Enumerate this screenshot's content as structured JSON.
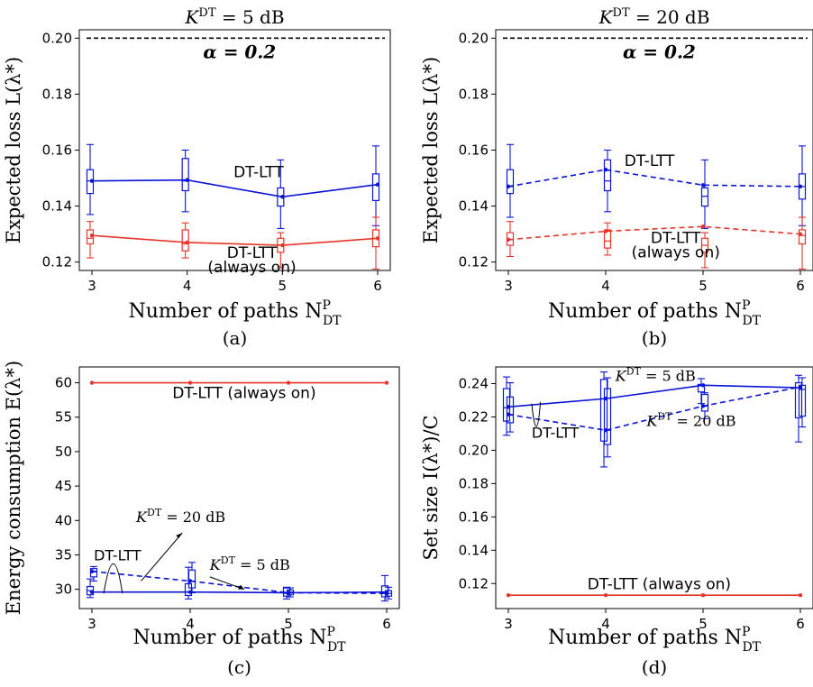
{
  "colors": {
    "blue": "#0a14d8",
    "red": "#e8352a",
    "black": "#000000"
  },
  "chart_data": [
    {
      "panel": "a",
      "caption": "(a)",
      "type": "line",
      "title": "K^DT = 5 dB",
      "title_main": "K",
      "title_sup": "DT",
      "title_rest": " = 5 dB",
      "xlabel": "Number of paths N^P_DT",
      "xlabel_main": "Number of paths N",
      "xlabel_sup": "P",
      "xlabel_sub": "DT",
      "ylabel": "Expected loss L(λ*)",
      "x": [
        3,
        4,
        5,
        6
      ],
      "xlim": [
        3,
        6
      ],
      "ylim": [
        0.117,
        0.203
      ],
      "yticks": [
        0.12,
        0.14,
        0.16,
        0.18,
        0.2
      ],
      "ytick_labels": [
        "0.12",
        "0.14",
        "0.16",
        "0.18",
        "0.20"
      ],
      "xticks": [
        3,
        4,
        5,
        6
      ],
      "xtick_labels": [
        "3",
        "4",
        "5",
        "6"
      ],
      "hline": {
        "y": 0.2,
        "label": "α = 0.2",
        "label_x": 4.55,
        "label_y": 0.1955
      },
      "series": [
        {
          "color": "#0a14d8",
          "dash": false,
          "values": [
            0.149,
            0.1493,
            0.1433,
            0.1477
          ],
          "boxes": [
            {
              "wlo": 0.137,
              "q1": 0.1445,
              "med": 0.149,
              "q3": 0.153,
              "whi": 0.162
            },
            {
              "wlo": 0.138,
              "q1": 0.1455,
              "med": 0.149,
              "q3": 0.157,
              "whi": 0.16
            },
            {
              "wlo": 0.132,
              "q1": 0.14,
              "med": 0.1435,
              "q3": 0.1465,
              "whi": 0.1565
            },
            {
              "wlo": 0.133,
              "q1": 0.142,
              "med": 0.1475,
              "q3": 0.1515,
              "whi": 0.1615
            }
          ],
          "label": "DT-LTT",
          "label_x": 4.75,
          "label_y": 0.1503
        },
        {
          "color": "#e8352a",
          "dash": false,
          "values": [
            0.1295,
            0.127,
            0.126,
            0.1285
          ],
          "boxes": [
            {
              "wlo": 0.1215,
              "q1": 0.1265,
              "med": 0.1285,
              "q3": 0.1315,
              "whi": 0.1345
            },
            {
              "wlo": 0.1215,
              "q1": 0.124,
              "med": 0.1265,
              "q3": 0.1315,
              "whi": 0.134
            },
            {
              "wlo": 0.118,
              "q1": 0.1235,
              "med": 0.126,
              "q3": 0.1285,
              "whi": 0.1305
            },
            {
              "wlo": 0.1175,
              "q1": 0.1255,
              "med": 0.1285,
              "q3": 0.1315,
              "whi": 0.136
            }
          ],
          "label": "DT-LTT",
          "label_x": 4.68,
          "label_y": 0.1215,
          "label2": "(always on)",
          "label2_x": 4.68,
          "label2_y": 0.1163
        }
      ]
    },
    {
      "panel": "b",
      "caption": "(b)",
      "type": "line",
      "title": "K^DT = 20 dB",
      "title_main": "K",
      "title_sup": "DT",
      "title_rest": " = 20 dB",
      "xlabel": "Number of paths N^P_DT",
      "xlabel_main": "Number of paths N",
      "xlabel_sup": "P",
      "xlabel_sub": "DT",
      "ylabel": "Expected loss L(λ*)",
      "x": [
        3,
        4,
        5,
        6
      ],
      "xlim": [
        3,
        6
      ],
      "ylim": [
        0.117,
        0.203
      ],
      "yticks": [
        0.12,
        0.14,
        0.16,
        0.18,
        0.2
      ],
      "ytick_labels": [
        "0.12",
        "0.14",
        "0.16",
        "0.18",
        "0.20"
      ],
      "xticks": [
        3,
        4,
        5,
        6
      ],
      "xtick_labels": [
        "3",
        "4",
        "5",
        "6"
      ],
      "hline": {
        "y": 0.2,
        "label": "α = 0.2",
        "label_x": 4.55,
        "label_y": 0.1955
      },
      "series": [
        {
          "color": "#0a14d8",
          "dash": true,
          "values": [
            0.147,
            0.153,
            0.1475,
            0.147
          ],
          "boxes": [
            {
              "wlo": 0.136,
              "q1": 0.1445,
              "med": 0.147,
              "q3": 0.153,
              "whi": 0.162
            },
            {
              "wlo": 0.138,
              "q1": 0.1455,
              "med": 0.149,
              "q3": 0.1565,
              "whi": 0.16
            },
            {
              "wlo": 0.132,
              "q1": 0.14,
              "med": 0.1435,
              "q3": 0.1465,
              "whi": 0.1565
            },
            {
              "wlo": 0.133,
              "q1": 0.1425,
              "med": 0.147,
              "q3": 0.1515,
              "whi": 0.1615
            }
          ],
          "label": "DT-LTT",
          "label_x": 4.45,
          "label_y": 0.1543
        },
        {
          "color": "#e8352a",
          "dash": true,
          "values": [
            0.128,
            0.131,
            0.1327,
            0.13
          ],
          "boxes": [
            {
              "wlo": 0.122,
              "q1": 0.126,
              "med": 0.128,
              "q3": 0.1305,
              "whi": 0.1345
            },
            {
              "wlo": 0.1225,
              "q1": 0.125,
              "med": 0.1275,
              "q3": 0.1315,
              "whi": 0.134
            },
            {
              "wlo": 0.118,
              "q1": 0.1235,
              "med": 0.126,
              "q3": 0.1285,
              "whi": 0.1305
            },
            {
              "wlo": 0.1175,
              "q1": 0.1265,
              "med": 0.1295,
              "q3": 0.1315,
              "whi": 0.136
            }
          ],
          "label": "DT-LTT",
          "label_x": 4.72,
          "label_y": 0.1268,
          "label2": "(always on)",
          "label2_x": 4.72,
          "label2_y": 0.1217
        }
      ]
    },
    {
      "panel": "c",
      "caption": "(c)",
      "type": "line",
      "title": "",
      "xlabel": "Number of paths N^P_DT",
      "xlabel_main": "Number of paths N",
      "xlabel_sup": "P",
      "xlabel_sub": "DT",
      "ylabel": "Energy consumption E(λ*)",
      "x": [
        3,
        4,
        5,
        6
      ],
      "xlim": [
        3,
        6
      ],
      "ylim": [
        27.2,
        62.3
      ],
      "yticks": [
        30,
        35,
        40,
        45,
        50,
        55,
        60
      ],
      "ytick_labels": [
        "30",
        "35",
        "40",
        "45",
        "50",
        "55",
        "60"
      ],
      "xticks": [
        3,
        4,
        5,
        6
      ],
      "xtick_labels": [
        "3",
        "4",
        "5",
        "6"
      ],
      "series": [
        {
          "color": "#e8352a",
          "dash": false,
          "values": [
            60,
            60,
            60,
            60
          ],
          "boxes": [],
          "label": "DT-LTT (always on)",
          "label_x": 4.55,
          "label_y": 57.8
        },
        {
          "color": "#0a14d8",
          "dash": false,
          "values": [
            29.6,
            29.6,
            29.5,
            29.6
          ],
          "boxes": [
            {
              "wlo": 28.8,
              "q1": 29.2,
              "med": 29.8,
              "q3": 30.4,
              "whi": 31.5
            },
            {
              "wlo": 28.6,
              "q1": 29.1,
              "med": 29.6,
              "q3": 30.8,
              "whi": 33.2
            },
            {
              "wlo": 28.6,
              "q1": 29.0,
              "med": 29.4,
              "q3": 30.2,
              "whi": 30.3
            },
            {
              "wlo": 28.3,
              "q1": 28.9,
              "med": 29.4,
              "q3": 30.5,
              "whi": 32.0
            }
          ]
        },
        {
          "color": "#0a14d8",
          "dash": true,
          "values": [
            32.6,
            31.2,
            29.5,
            29.4
          ],
          "boxes": [
            {
              "wlo": 31.2,
              "q1": 31.8,
              "med": 32.6,
              "q3": 33.0,
              "whi": 33.3
            },
            {
              "wlo": 29.5,
              "q1": 30.2,
              "med": 31.2,
              "q3": 32.8,
              "whi": 33.9
            },
            {
              "wlo": 28.9,
              "q1": 29.2,
              "med": 29.6,
              "q3": 29.9,
              "whi": 30.2
            },
            {
              "wlo": 28.6,
              "q1": 29.0,
              "med": 29.4,
              "q3": 29.8,
              "whi": 30.3
            }
          ]
        }
      ],
      "annotations": [
        {
          "text": "DT-LTT",
          "x": 3.02,
          "y": 34.2
        },
        {
          "text_main": "K",
          "text_sup": "DT",
          "text_rest": " = 20 dB",
          "text": "K^DT = 20 dB",
          "x": 3.45,
          "y": 39.8
        },
        {
          "text_main": "K",
          "text_sup": "DT",
          "text_rest": " = 5 dB",
          "text": "K^DT = 5 dB",
          "x": 4.2,
          "y": 32.8
        }
      ]
    },
    {
      "panel": "d",
      "caption": "(d)",
      "type": "line",
      "title": "",
      "xlabel": "Number of paths N^P_DT",
      "xlabel_main": "Number of paths N",
      "xlabel_sup": "P",
      "xlabel_sub": "DT",
      "ylabel": "Set size I(λ*)/C",
      "x": [
        3,
        4,
        5,
        6
      ],
      "xlim": [
        3,
        6
      ],
      "ylim": [
        0.105,
        0.25
      ],
      "yticks": [
        0.12,
        0.14,
        0.16,
        0.18,
        0.2,
        0.22,
        0.24
      ],
      "ytick_labels": [
        "0.12",
        "0.14",
        "0.16",
        "0.18",
        "0.20",
        "0.22",
        "0.24"
      ],
      "xticks": [
        3,
        4,
        5,
        6
      ],
      "xtick_labels": [
        "3",
        "4",
        "5",
        "6"
      ],
      "series": [
        {
          "color": "#0a14d8",
          "dash": false,
          "values": [
            0.226,
            0.231,
            0.239,
            0.2375
          ],
          "boxes": [
            {
              "wlo": 0.209,
              "q1": 0.2175,
              "med": 0.2255,
              "q3": 0.237,
              "whi": 0.244
            },
            {
              "wlo": 0.19,
              "q1": 0.2055,
              "med": 0.231,
              "q3": 0.2425,
              "whi": 0.247
            },
            {
              "wlo": 0.228,
              "q1": 0.235,
              "med": 0.239,
              "q3": 0.2395,
              "whi": 0.243
            },
            {
              "wlo": 0.205,
              "q1": 0.2195,
              "med": 0.2375,
              "q3": 0.2405,
              "whi": 0.245
            }
          ]
        },
        {
          "color": "#0a14d8",
          "dash": true,
          "values": [
            0.2215,
            0.212,
            0.2265,
            0.238
          ],
          "boxes": [
            {
              "wlo": 0.211,
              "q1": 0.2165,
              "med": 0.2215,
              "q3": 0.232,
              "whi": 0.2405
            },
            {
              "wlo": 0.196,
              "q1": 0.2035,
              "med": 0.212,
              "q3": 0.237,
              "whi": 0.2435
            },
            {
              "wlo": 0.219,
              "q1": 0.2235,
              "med": 0.2265,
              "q3": 0.2335,
              "whi": 0.2345
            },
            {
              "wlo": 0.214,
              "q1": 0.2205,
              "med": 0.2365,
              "q3": 0.239,
              "whi": 0.2435
            }
          ]
        },
        {
          "color": "#e8352a",
          "dash": false,
          "values": [
            0.113,
            0.113,
            0.113,
            0.113
          ],
          "boxes": [],
          "label": "DT-LTT (always on)",
          "label_x": 4.55,
          "label_y": 0.1165
        }
      ],
      "annotations": [
        {
          "text_main": "K",
          "text_sup": "DT",
          "text_rest": " = 5 dB",
          "text": "K^DT = 5 dB",
          "x": 4.1,
          "y": 0.2415
        },
        {
          "text_main": "K",
          "text_sup": "DT",
          "text_rest": " = 20 dB",
          "text": "K^DT = 20 dB",
          "x": 4.42,
          "y": 0.2145
        },
        {
          "text": "DT-LTT",
          "x": 3.24,
          "y": 0.2075
        }
      ]
    }
  ]
}
